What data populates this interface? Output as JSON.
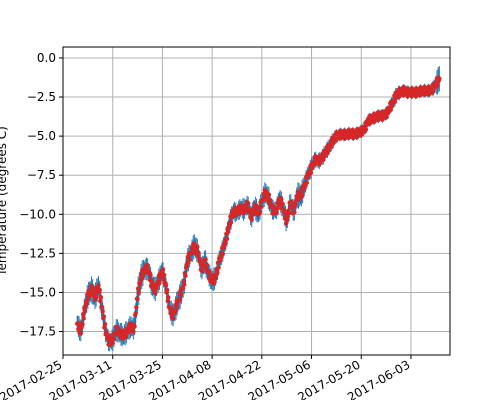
{
  "chart_data": {
    "type": "scatter",
    "title": "",
    "xlabel": "",
    "ylabel": "Temperature (degrees C)",
    "grid": true,
    "xlim": [
      "2017-02-25",
      "2017-06-14"
    ],
    "ylim": [
      -19.0,
      0.7
    ],
    "x_ticks": [
      "2017-02-25",
      "2017-03-11",
      "2017-03-25",
      "2017-04-08",
      "2017-04-22",
      "2017-05-06",
      "2017-05-20",
      "2017-06-03"
    ],
    "x_tick_labels": [
      "2017-02-25",
      "2017-03-11",
      "2017-03-25",
      "2017-04-08",
      "2017-04-22",
      "2017-05-06",
      "2017-05-20",
      "2017-06-03"
    ],
    "y_ticks": [
      0.0,
      -2.5,
      -5.0,
      -7.5,
      -10.0,
      -12.5,
      -15.0,
      -17.5
    ],
    "y_tick_labels": [
      "0.0",
      "−2.5",
      "−5.0",
      "−7.5",
      "−10.0",
      "−12.5",
      "−15.0",
      "−17.5"
    ],
    "colors": {
      "points": "#d62728",
      "error_bars": "#1f77b4",
      "grid": "#b0b0b0"
    },
    "series": [
      {
        "name": "temperature",
        "x": [
          "2017-03-01",
          "2017-03-02",
          "2017-03-03",
          "2017-03-04",
          "2017-03-05",
          "2017-03-06",
          "2017-03-07",
          "2017-03-08",
          "2017-03-09",
          "2017-03-10",
          "2017-03-11",
          "2017-03-12",
          "2017-03-13",
          "2017-03-14",
          "2017-03-15",
          "2017-03-16",
          "2017-03-17",
          "2017-03-18",
          "2017-03-19",
          "2017-03-20",
          "2017-03-21",
          "2017-03-22",
          "2017-03-23",
          "2017-03-24",
          "2017-03-25",
          "2017-03-26",
          "2017-03-27",
          "2017-03-28",
          "2017-03-29",
          "2017-03-30",
          "2017-03-31",
          "2017-04-01",
          "2017-04-02",
          "2017-04-03",
          "2017-04-04",
          "2017-04-05",
          "2017-04-06",
          "2017-04-07",
          "2017-04-08",
          "2017-04-09",
          "2017-04-10",
          "2017-04-11",
          "2017-04-12",
          "2017-04-13",
          "2017-04-14",
          "2017-04-15",
          "2017-04-16",
          "2017-04-17",
          "2017-04-18",
          "2017-04-19",
          "2017-04-20",
          "2017-04-21",
          "2017-04-22",
          "2017-04-23",
          "2017-04-24",
          "2017-04-25",
          "2017-04-26",
          "2017-04-27",
          "2017-04-28",
          "2017-04-29",
          "2017-04-30",
          "2017-05-01",
          "2017-05-02",
          "2017-05-03",
          "2017-05-04",
          "2017-05-05",
          "2017-05-06",
          "2017-05-07",
          "2017-05-08",
          "2017-05-09",
          "2017-05-10",
          "2017-05-11",
          "2017-05-12",
          "2017-05-13",
          "2017-05-14",
          "2017-05-15",
          "2017-05-16",
          "2017-05-17",
          "2017-05-18",
          "2017-05-19",
          "2017-05-20",
          "2017-05-21",
          "2017-05-22",
          "2017-05-23",
          "2017-05-24",
          "2017-05-25",
          "2017-05-26",
          "2017-05-27",
          "2017-05-28",
          "2017-05-29",
          "2017-05-30",
          "2017-05-31",
          "2017-06-01",
          "2017-06-02",
          "2017-06-03",
          "2017-06-04",
          "2017-06-05",
          "2017-06-06",
          "2017-06-07",
          "2017-06-08",
          "2017-06-09",
          "2017-06-10",
          "2017-06-11"
        ],
        "y": [
          -17.0,
          -17.5,
          -16.2,
          -15.2,
          -14.8,
          -15.3,
          -14.6,
          -16.0,
          -17.5,
          -18.2,
          -18.0,
          -17.4,
          -17.6,
          -17.8,
          -17.5,
          -17.2,
          -17.3,
          -15.2,
          -14.0,
          -13.5,
          -13.5,
          -14.5,
          -14.8,
          -14.2,
          -13.6,
          -14.6,
          -16.0,
          -16.5,
          -15.8,
          -15.2,
          -14.5,
          -13.0,
          -12.5,
          -12.0,
          -12.4,
          -13.5,
          -13.0,
          -13.8,
          -14.3,
          -14.0,
          -13.0,
          -12.3,
          -11.5,
          -10.5,
          -9.8,
          -9.9,
          -9.6,
          -9.7,
          -9.4,
          -10.2,
          -9.5,
          -10.0,
          -9.2,
          -8.6,
          -9.0,
          -9.7,
          -9.8,
          -9.0,
          -9.6,
          -10.5,
          -9.3,
          -9.8,
          -8.8,
          -8.8,
          -8.2,
          -7.5,
          -7.0,
          -6.5,
          -6.6,
          -6.4,
          -6.0,
          -5.7,
          -5.3,
          -5.0,
          -4.9,
          -4.9,
          -4.9,
          -4.8,
          -4.9,
          -4.8,
          -4.7,
          -4.5,
          -4.0,
          -3.9,
          -3.8,
          -3.7,
          -3.7,
          -3.6,
          -3.2,
          -2.8,
          -2.3,
          -2.2,
          -2.1,
          -2.2,
          -2.2,
          -2.2,
          -2.2,
          -2.1,
          -2.1,
          -2.1,
          -2.0,
          -1.7,
          -1.3
        ],
        "err": [
          0.5,
          0.5,
          0.6,
          0.6,
          0.6,
          0.6,
          0.6,
          0.6,
          0.5,
          0.4,
          0.5,
          0.5,
          0.5,
          0.5,
          0.5,
          0.5,
          0.5,
          0.8,
          0.7,
          0.5,
          0.5,
          0.6,
          0.5,
          0.5,
          0.5,
          0.5,
          0.5,
          0.5,
          0.6,
          0.6,
          0.6,
          0.6,
          0.5,
          0.6,
          0.5,
          0.5,
          0.6,
          0.5,
          0.5,
          0.5,
          0.5,
          0.5,
          0.5,
          0.5,
          0.4,
          0.4,
          0.4,
          0.5,
          0.4,
          0.5,
          0.5,
          0.5,
          0.5,
          0.5,
          0.5,
          0.4,
          0.4,
          0.5,
          0.5,
          0.5,
          0.5,
          0.5,
          0.6,
          0.6,
          0.5,
          0.4,
          0.4,
          0.3,
          0.3,
          0.3,
          0.3,
          0.3,
          0.3,
          0.2,
          0.2,
          0.2,
          0.2,
          0.2,
          0.2,
          0.2,
          0.2,
          0.2,
          0.2,
          0.2,
          0.2,
          0.2,
          0.2,
          0.2,
          0.2,
          0.3,
          0.3,
          0.2,
          0.2,
          0.2,
          0.2,
          0.2,
          0.2,
          0.2,
          0.2,
          0.2,
          0.2,
          0.4,
          0.8
        ]
      }
    ]
  }
}
